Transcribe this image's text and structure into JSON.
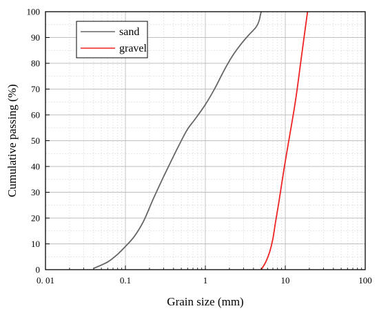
{
  "chart_data": {
    "type": "line",
    "title": "",
    "xlabel": "Grain size (mm)",
    "ylabel": "Cumulative passing (%)",
    "x_scale": "log",
    "xlim": [
      0.01,
      100
    ],
    "ylim": [
      0,
      100
    ],
    "x_ticks": [
      {
        "value": 0.01,
        "label": "0. 01"
      },
      {
        "value": 0.1,
        "label": "0.1"
      },
      {
        "value": 1,
        "label": "1"
      },
      {
        "value": 10,
        "label": "10"
      },
      {
        "value": 100,
        "label": "100"
      }
    ],
    "y_ticks": [
      {
        "value": 0,
        "label": "0"
      },
      {
        "value": 10,
        "label": "10"
      },
      {
        "value": 20,
        "label": "20"
      },
      {
        "value": 30,
        "label": "30"
      },
      {
        "value": 40,
        "label": "40"
      },
      {
        "value": 50,
        "label": "50"
      },
      {
        "value": 60,
        "label": "60"
      },
      {
        "value": 70,
        "label": "70"
      },
      {
        "value": 80,
        "label": "80"
      },
      {
        "value": 90,
        "label": "90"
      },
      {
        "value": 100,
        "label": "100"
      }
    ],
    "grid": true,
    "minor_grid": true,
    "legend_position": "top-left",
    "series": [
      {
        "name": "sand",
        "color": "#666666",
        "points": [
          [
            0.04,
            0.5
          ],
          [
            0.06,
            3
          ],
          [
            0.08,
            6
          ],
          [
            0.1,
            9
          ],
          [
            0.13,
            13
          ],
          [
            0.17,
            19
          ],
          [
            0.22,
            27
          ],
          [
            0.3,
            36
          ],
          [
            0.4,
            44
          ],
          [
            0.5,
            50
          ],
          [
            0.6,
            54.5
          ],
          [
            0.75,
            58.5
          ],
          [
            1.0,
            64
          ],
          [
            1.3,
            70
          ],
          [
            1.7,
            77
          ],
          [
            2.2,
            83
          ],
          [
            2.8,
            87.5
          ],
          [
            3.5,
            91
          ],
          [
            4.3,
            94
          ],
          [
            4.7,
            96.5
          ],
          [
            4.9,
            99
          ],
          [
            5.0,
            100
          ]
        ]
      },
      {
        "name": "gravel",
        "color": "#ee2222",
        "points": [
          [
            5.0,
            0
          ],
          [
            5.7,
            3
          ],
          [
            6.4,
            7
          ],
          [
            7.0,
            12
          ],
          [
            7.6,
            19
          ],
          [
            8.3,
            26
          ],
          [
            9.2,
            35
          ],
          [
            10.0,
            42
          ],
          [
            11.5,
            53
          ],
          [
            13.5,
            66
          ],
          [
            16.0,
            83
          ],
          [
            19.0,
            100
          ]
        ]
      }
    ]
  }
}
